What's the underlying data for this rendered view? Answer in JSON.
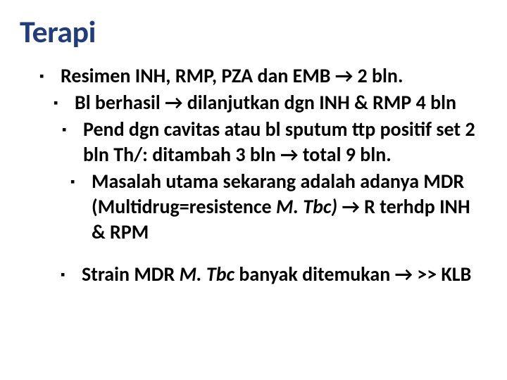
{
  "title": "Terapi",
  "bullets": {
    "b1": "Resimen INH, RMP, PZA dan EMB → 2 bln.",
    "b2": "Bl berhasil → dilanjutkan dgn INH & RMP 4 bln",
    "b3": "Pend dgn cavitas  atau bl sputum ttp positif set 2 bln Th/:  ditambah 3 bln → total 9 bln.",
    "b4_a": "Masalah utama sekarang  adalah adanya MDR  (Multidrug=resistence ",
    "b4_b": "M. Tbc)",
    "b4_c": " → R terhdp INH & RPM",
    "b5_a": "Strain MDR ",
    "b5_b": "M. Tbc",
    "b5_c": "  banyak ditemukan → >> KLB"
  },
  "style": {
    "title_color": "#223d7a",
    "text_color": "#000000",
    "background_color": "#ffffff",
    "title_fontsize": 44,
    "body_fontsize": 28,
    "bullet_glyph": "▪"
  }
}
